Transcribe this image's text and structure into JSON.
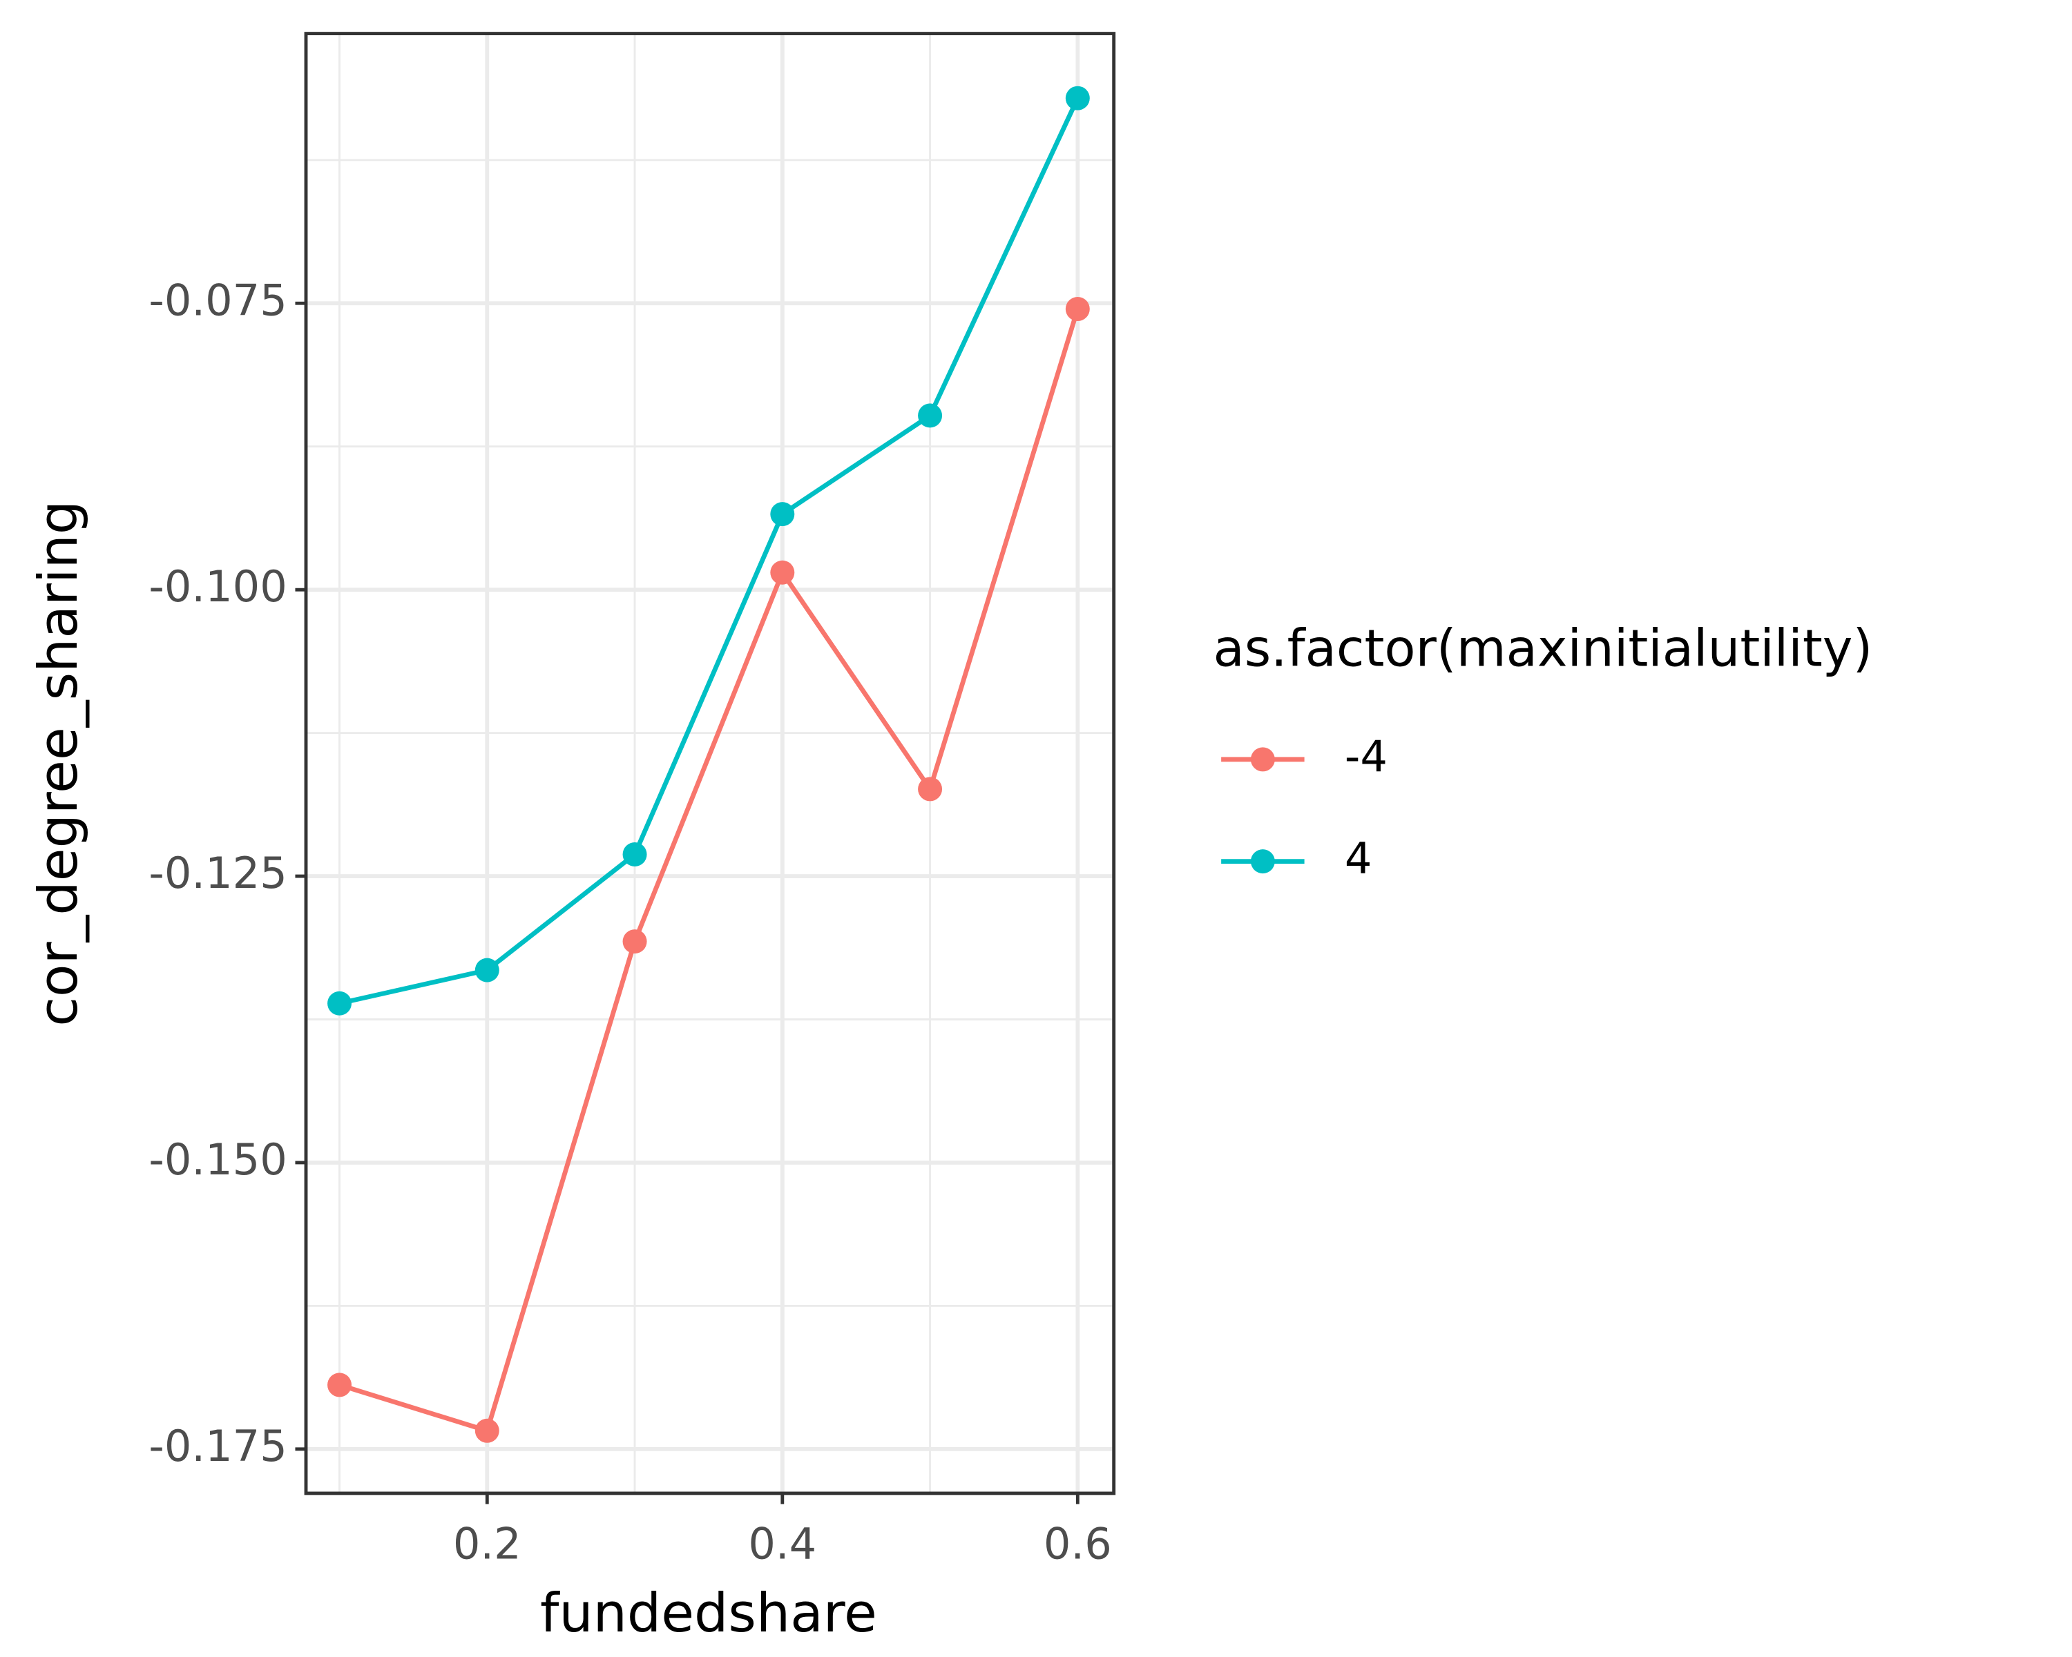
{
  "chart_data": {
    "type": "line",
    "x_label": "fundedshare",
    "y_label": "cor_degree_sharing",
    "legend_title": "as.factor(maxinitialutility)",
    "legend_position": "right",
    "x": [
      0.1,
      0.2,
      0.3,
      0.4,
      0.5,
      0.6
    ],
    "series": [
      {
        "name": "-4",
        "color": "#f8766d",
        "values": [
          -0.1694,
          -0.1734,
          -0.1307,
          -0.0985,
          -0.1174,
          -0.0755
        ]
      },
      {
        "name": "4",
        "color": "#00bfc4",
        "values": [
          -0.1361,
          -0.1332,
          -0.1231,
          -0.0934,
          -0.0848,
          -0.0571
        ]
      }
    ],
    "xlim": [
      0.0773,
      0.6245
    ],
    "xticks": [
      0.2,
      0.4,
      0.6
    ],
    "ylim": [
      -0.17886,
      -0.05146
    ],
    "yticks": [
      -0.175,
      {
        "value": -0.15,
        "label": "-0.150"
      },
      -0.125,
      {
        "value": -0.1,
        "label": "-0.100"
      },
      -0.075
    ],
    "grid": true
  }
}
